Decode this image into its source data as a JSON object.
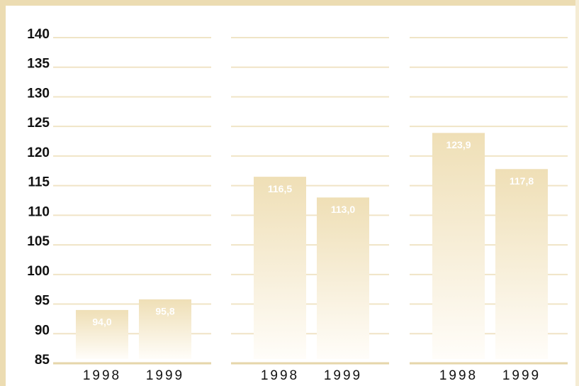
{
  "chart_data": [
    {
      "type": "bar",
      "categories": [
        "1998",
        "1999"
      ],
      "values": [
        94.0,
        95.8
      ],
      "value_labels": [
        "94,0",
        "95,8"
      ],
      "ylim": [
        85,
        140
      ],
      "yticks": [
        85,
        90,
        95,
        100,
        105,
        110,
        115,
        120,
        125,
        130,
        135,
        140
      ],
      "grid": true,
      "color": "#efdfb6"
    },
    {
      "type": "bar",
      "categories": [
        "1998",
        "1999"
      ],
      "values": [
        116.5,
        113.0
      ],
      "value_labels": [
        "116,5",
        "113,0"
      ],
      "ylim": [
        85,
        140
      ],
      "grid": true,
      "color": "#efdfb6"
    },
    {
      "type": "bar",
      "categories": [
        "1998",
        "1999"
      ],
      "values": [
        123.9,
        117.8
      ],
      "value_labels": [
        "123,9",
        "117,8"
      ],
      "ylim": [
        85,
        140
      ],
      "grid": true,
      "color": "#efdfb6"
    }
  ]
}
